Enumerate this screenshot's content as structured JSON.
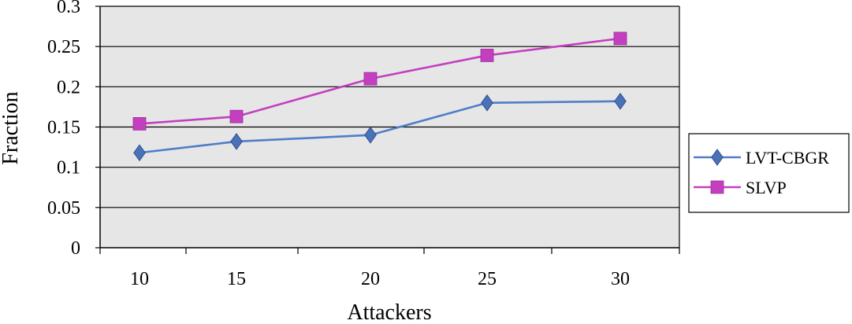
{
  "chart_data": {
    "type": "line",
    "title": "",
    "xlabel": "Attackers",
    "ylabel": "Fraction",
    "categories": [
      "10",
      "15",
      "20",
      "25",
      "30"
    ],
    "yticks": [
      "0",
      "0.05",
      "0.1",
      "0.15",
      "0.2",
      "0.25",
      "0.3"
    ],
    "ylim": [
      0,
      0.3
    ],
    "grid": true,
    "legend_position": "right",
    "background_color": "#e6e6e6",
    "series": [
      {
        "name": "LVT-CBGR",
        "marker": "diamond",
        "color": "#4f7dc8",
        "marker_color": "#4a72b8",
        "values": [
          0.118,
          0.132,
          0.14,
          0.18,
          0.182
        ]
      },
      {
        "name": "SLVP",
        "marker": "square",
        "color": "#c43fc0",
        "marker_color": "#c43fc0",
        "values": [
          0.154,
          0.163,
          0.21,
          0.239,
          0.26
        ]
      }
    ]
  }
}
